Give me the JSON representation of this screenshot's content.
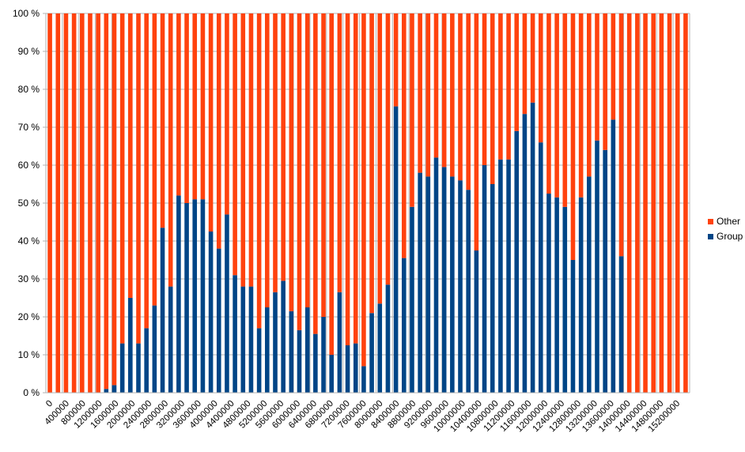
{
  "chart_data": {
    "type": "bar",
    "stacked": "percent",
    "bin_width": 200000,
    "x_tick_labels": [
      "0",
      "400000",
      "800000",
      "1200000",
      "1600000",
      "2000000",
      "2400000",
      "2800000",
      "3200000",
      "3600000",
      "4000000",
      "4400000",
      "4800000",
      "5200000",
      "5600000",
      "6000000",
      "6400000",
      "6800000",
      "7200000",
      "7600000",
      "8000000",
      "8400000",
      "8800000",
      "9200000",
      "9600000",
      "10000000",
      "10400000",
      "10800000",
      "11200000",
      "11600000",
      "12000000",
      "12400000",
      "12800000",
      "13200000",
      "13600000",
      "14000000",
      "14400000",
      "14800000",
      "15200000"
    ],
    "y_tick_labels": [
      "0 %",
      "10 %",
      "20 %",
      "30 %",
      "40 %",
      "50 %",
      "60 %",
      "70 %",
      "80 %",
      "90 %",
      "100 %"
    ],
    "ylim": [
      0,
      100
    ],
    "grid": true,
    "legend_position": "right",
    "series": [
      {
        "name": "Group",
        "color": "#004586",
        "values": [
          0,
          0,
          0,
          0,
          0,
          0,
          0,
          1,
          2,
          13,
          25,
          13,
          17,
          23,
          43.5,
          28,
          52,
          50,
          51,
          51,
          42.5,
          38,
          47,
          31,
          28,
          28,
          17,
          22.5,
          26.5,
          29.5,
          21.5,
          16.5,
          22.5,
          15.5,
          20,
          10,
          26.5,
          12.5,
          13,
          7,
          21,
          23.5,
          28.5,
          75.5,
          35.5,
          49,
          58,
          57,
          62,
          59.5,
          57,
          56,
          53.5,
          37.5,
          60,
          55,
          61.5,
          61.5,
          69,
          73.5,
          76.5,
          66,
          52.5,
          51.5,
          49,
          35,
          51.5,
          57,
          66.5,
          64,
          72,
          36,
          0,
          0,
          0,
          0,
          0,
          0,
          0,
          0
        ]
      },
      {
        "name": "Other",
        "color": "#ff420e",
        "values": [
          100,
          100,
          100,
          100,
          100,
          100,
          100,
          99,
          98,
          87,
          75,
          87,
          83,
          77,
          56.5,
          72,
          48,
          50,
          49,
          49,
          57.5,
          62,
          53,
          69,
          72,
          72,
          83,
          77.5,
          73.5,
          70.5,
          78.5,
          83.5,
          77.5,
          84.5,
          80,
          90,
          73.5,
          87.5,
          87,
          93,
          79,
          76.5,
          71.5,
          24.5,
          64.5,
          51,
          42,
          43,
          38,
          40.5,
          43,
          44,
          46.5,
          62.5,
          40,
          45,
          38.5,
          38.5,
          31,
          26.5,
          23.5,
          34,
          47.5,
          48.5,
          51,
          65,
          48.5,
          43,
          33.5,
          36,
          28,
          64,
          100,
          100,
          100,
          100,
          100,
          100,
          100,
          100
        ]
      }
    ]
  }
}
